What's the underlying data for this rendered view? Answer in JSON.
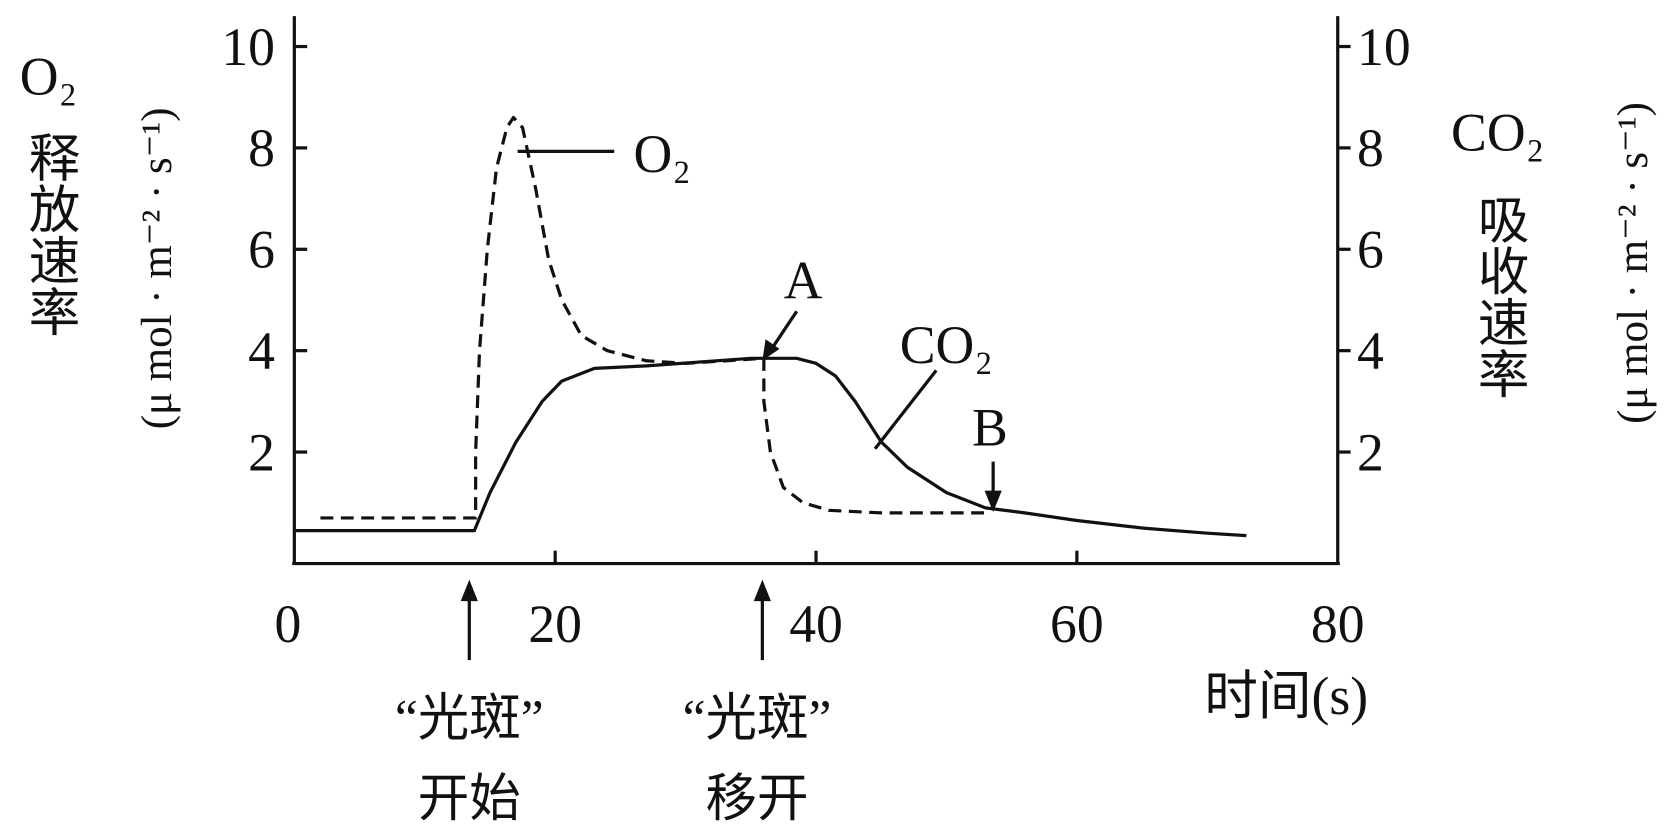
{
  "chart_data": {
    "type": "line",
    "xlim": [
      0,
      80
    ],
    "xticks": [
      0,
      20,
      40,
      60,
      80
    ],
    "ylim": [
      -0.2,
      10.6
    ],
    "yticks": [
      2,
      4,
      6,
      8,
      10
    ],
    "y2lim": [
      -0.2,
      10.6
    ],
    "y2ticks": [
      2,
      4,
      6,
      8,
      10
    ],
    "x_label": "时间(s)",
    "y_label": [
      "O₂",
      "释放速率",
      "(μ mol · m⁻² · s⁻¹)"
    ],
    "y2_label": [
      "CO₂",
      "吸收速率",
      "(μ mol · m⁻² · s⁻¹)"
    ],
    "annotations": {
      "A": "A",
      "B": "B",
      "light_on": [
        "“光斑”",
        "开始"
      ],
      "light_off": [
        "“光斑”",
        "移开"
      ]
    },
    "series": [
      {
        "name": "O₂",
        "color": "#111111",
        "dashed": true,
        "x": [
          2,
          13.9,
          13.9,
          14.2,
          14.8,
          15.5,
          16.3,
          16.8,
          17.5,
          18.5,
          19.5,
          20.5,
          22,
          24,
          27,
          30,
          36,
          36,
          36.5,
          37.5,
          39,
          41,
          45,
          53
        ],
        "values": [
          0.7,
          0.7,
          2,
          4,
          6,
          7.6,
          8.4,
          8.6,
          8.4,
          7.2,
          5.8,
          5,
          4.3,
          4,
          3.8,
          3.75,
          3.85,
          3,
          2,
          1.3,
          1,
          0.85,
          0.8,
          0.8
        ]
      },
      {
        "name": "CO₂",
        "color": "#111111",
        "dashed": false,
        "axis": "y2",
        "x": [
          0,
          13.8,
          15,
          17,
          19,
          20.5,
          23,
          27,
          35,
          38.5,
          40,
          41.5,
          43,
          45,
          47,
          50,
          53,
          56,
          60,
          65,
          70,
          73
        ],
        "values": [
          0.45,
          0.45,
          1.2,
          2.2,
          3,
          3.4,
          3.65,
          3.7,
          3.85,
          3.85,
          3.75,
          3.5,
          3,
          2.2,
          1.7,
          1.2,
          0.9,
          0.8,
          0.65,
          0.5,
          0.4,
          0.35
        ]
      }
    ]
  }
}
